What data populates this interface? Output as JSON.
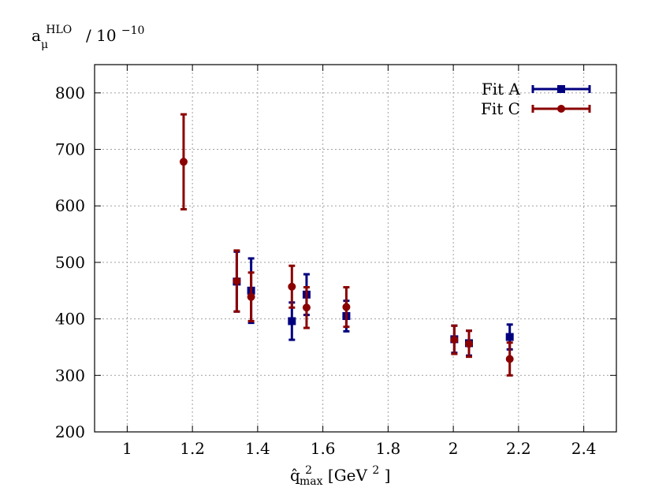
{
  "chart_data": {
    "type": "scatter",
    "ylabel": {
      "base": "a",
      "sub": "μ",
      "sup": "HLO",
      "rest": " / 10",
      "exp": "−10"
    },
    "xlabel": {
      "base": "q̂",
      "sup": "2",
      "sub": "max",
      "unit_open": " [GeV",
      "unit_sup": "2",
      "unit_close": "]"
    },
    "xlim": [
      0.9,
      2.5
    ],
    "ylim": [
      200,
      850
    ],
    "xticks": [
      1,
      1.2,
      1.4,
      1.6,
      1.8,
      2,
      2.2,
      2.4
    ],
    "xtick_labels": [
      "1",
      "1.2",
      "1.4",
      "1.6",
      "1.8",
      "2",
      "2.2",
      "2.4"
    ],
    "yticks": [
      200,
      300,
      400,
      500,
      600,
      700,
      800
    ],
    "ytick_labels": [
      "200",
      "300",
      "400",
      "500",
      "600",
      "700",
      "800"
    ],
    "grid": true,
    "legend_position": "top-right",
    "series": [
      {
        "name": "Fit A",
        "color": "#00007f",
        "marker": "square",
        "points": [
          {
            "x": 1.336,
            "y": 466,
            "err": 53
          },
          {
            "x": 1.38,
            "y": 450,
            "err": 57
          },
          {
            "x": 1.505,
            "y": 396,
            "err": 33
          },
          {
            "x": 1.55,
            "y": 443,
            "err": 36
          },
          {
            "x": 1.672,
            "y": 405,
            "err": 27
          },
          {
            "x": 2.003,
            "y": 364,
            "err": 24
          },
          {
            "x": 2.048,
            "y": 357,
            "err": 22
          },
          {
            "x": 2.173,
            "y": 368,
            "err": 22
          }
        ]
      },
      {
        "name": "Fit C",
        "color": "#8b0000",
        "marker": "circle",
        "points": [
          {
            "x": 1.173,
            "y": 678,
            "err": 84
          },
          {
            "x": 1.336,
            "y": 467,
            "err": 54
          },
          {
            "x": 1.38,
            "y": 439,
            "err": 43
          },
          {
            "x": 1.505,
            "y": 457,
            "err": 37
          },
          {
            "x": 1.55,
            "y": 420,
            "err": 36
          },
          {
            "x": 1.672,
            "y": 421,
            "err": 35
          },
          {
            "x": 2.003,
            "y": 363,
            "err": 25
          },
          {
            "x": 2.048,
            "y": 356,
            "err": 23
          },
          {
            "x": 2.173,
            "y": 329,
            "err": 29
          }
        ]
      }
    ]
  }
}
